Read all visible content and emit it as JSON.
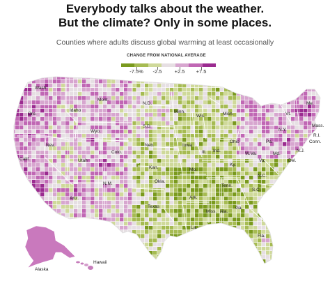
{
  "headline": {
    "line1": "Everybody talks about the weather.",
    "line2": "But the climate? Only in some places."
  },
  "subtitle": "Counties where adults discuss global warming at least occasionally",
  "legend": {
    "title": "CHANGE FROM NATIONAL AVERAGE",
    "ticks": [
      "-7.5%",
      "-2.5",
      "+2.5",
      "+7.5"
    ],
    "colors": [
      "#7a9a1e",
      "#a6bb52",
      "#cfd99a",
      "#e6dfe3",
      "#d7a6cf",
      "#c067b4",
      "#9b2b90"
    ]
  },
  "map": {
    "state_labels": [
      "Wash.",
      "Ore.",
      "Calif.",
      "Nev.",
      "Idaho",
      "Mont.",
      "Wyo.",
      "Utah",
      "Ariz.",
      "Colo.",
      "N.M.",
      "N.D.",
      "S.D.",
      "Neb.",
      "Kan.",
      "Okla.",
      "Texas",
      "Minn.",
      "Iowa",
      "Mo.",
      "Ark.",
      "La.",
      "Wis.",
      "Ill.",
      "Mich.",
      "Ind.",
      "Ohio",
      "Ky.",
      "Tenn.",
      "Miss.",
      "Ala.",
      "Ga.",
      "Fla.",
      "S.C.",
      "N.C.",
      "Va.",
      "W.Va.",
      "Pa.",
      "N.Y.",
      "Me.",
      "Vt.",
      "Mass.",
      "R.I.",
      "Conn.",
      "N.J.",
      "Del.",
      "Md.",
      "Alaska",
      "Hawaii"
    ]
  }
}
